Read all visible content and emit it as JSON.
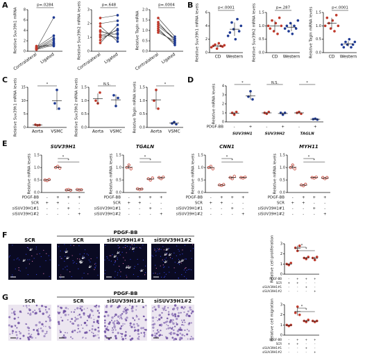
{
  "panel_labels": [
    "A",
    "B",
    "C",
    "D",
    "E",
    "F",
    "G"
  ],
  "images": [
    {
      "group_label": "PDGF-BB",
      "labels": [
        "SCR",
        "SCR",
        "siSUV39H1#1",
        "siSUV39H1#2"
      ]
    },
    {
      "group_label": "PDGF-BB",
      "labels": [
        "SCR",
        "SCR",
        "siSUV39H1#1",
        "siSUV39H1#2"
      ]
    }
  ],
  "chart_data": [
    {
      "type": "paired",
      "ylabel": "Relative Suv39h1 mRNA",
      "categories": [
        "Contralateral",
        "Ligated"
      ],
      "colors": [
        "#c0392b",
        "#1f3a93"
      ],
      "values": [
        [
          0.3,
          0.5,
          0.4,
          0.6,
          0.8,
          0.5,
          0.7,
          1.0,
          0.4
        ],
        [
          1.2,
          1.8,
          1.5,
          2.5,
          3.0,
          6.5,
          1.4,
          1.0,
          2.2
        ]
      ],
      "ylim": [
        0,
        8
      ],
      "yticks": [
        0,
        2,
        4,
        6,
        8
      ],
      "p_value": "p=.0284"
    },
    {
      "type": "paired",
      "ylabel": "Relative Suv39h2 mRNA levels",
      "categories": [
        "Contralateral",
        "Ligated"
      ],
      "colors": [
        "#c0392b",
        "#1f3a93"
      ],
      "values": [
        [
          1.0,
          1.5,
          2.0,
          0.8,
          1.2,
          2.4,
          1.8,
          0.6,
          1.4,
          1.1
        ],
        [
          1.3,
          0.9,
          2.2,
          1.6,
          1.0,
          2.6,
          0.7,
          1.9,
          1.2,
          1.5
        ]
      ],
      "ylim": [
        0,
        3
      ],
      "yticks": [
        0,
        1,
        2,
        3
      ],
      "p_value": "p=.648"
    },
    {
      "type": "paired",
      "ylabel": "Relative Tagln mRNA",
      "categories": [
        "Contralateral",
        "Ligated"
      ],
      "colors": [
        "#c0392b",
        "#1f3a93"
      ],
      "values": [
        [
          1.0,
          1.2,
          1.4,
          1.6,
          1.1,
          0.9,
          1.3,
          1.0
        ],
        [
          0.4,
          0.6,
          0.5,
          0.7,
          0.3,
          0.5,
          0.6,
          0.4
        ]
      ],
      "ylim": [
        0,
        2
      ],
      "yticks": [
        {
          "value": 0,
          "label": "0.0"
        },
        {
          "value": 0.5,
          "label": "0.5"
        },
        {
          "value": 1,
          "label": "1.0"
        },
        {
          "value": 1.5,
          "label": "1.5"
        },
        {
          "value": 2,
          "label": "2.0"
        }
      ],
      "p_value": "p=.0004"
    },
    {
      "type": "dot",
      "ylabel": "Relative Suv39h1 mRNA levels",
      "categories": [
        "CD",
        "Western"
      ],
      "colors": [
        "#c0392b",
        "#1f3a93"
      ],
      "values": [
        [
          0.8,
          1.0,
          1.2,
          0.6,
          1.4,
          1.0,
          0.9,
          1.1
        ],
        [
          2.5,
          3.0,
          4.5,
          3.5,
          2.0,
          5.0,
          3.2,
          4.0
        ]
      ],
      "means": [
        1.0,
        3.5
      ],
      "errors": [
        0.25,
        1.0
      ],
      "ylim": [
        0,
        6
      ],
      "yticks": [
        0,
        2,
        4,
        6
      ],
      "p_value": "p<.0001"
    },
    {
      "type": "dot",
      "ylabel": "Relative Suv39h2 mRNA levels",
      "categories": [
        "CD",
        "Western"
      ],
      "colors": [
        "#c0392b",
        "#1f3a93"
      ],
      "values": [
        [
          1.0,
          0.9,
          1.2,
          0.8,
          1.1,
          0.7,
          1.3,
          1.0
        ],
        [
          0.9,
          1.0,
          0.8,
          1.1,
          0.7,
          1.0,
          0.9,
          1.2
        ]
      ],
      "means": [
        1.0,
        0.95
      ],
      "errors": [
        0.2,
        0.15
      ],
      "ylim": [
        0,
        1.5
      ],
      "yticks": [
        {
          "value": 0,
          "label": "0.0"
        },
        0.5,
        {
          "value": 1,
          "label": "1.0"
        },
        1.5
      ],
      "p_value": "p=.287"
    },
    {
      "type": "dot",
      "ylabel": "Relative Tagln mRNA levels",
      "categories": [
        "CD",
        "Western"
      ],
      "colors": [
        "#c0392b",
        "#1f3a93"
      ],
      "values": [
        [
          1.0,
          1.3,
          1.1,
          0.9,
          1.2,
          0.8,
          1.4,
          1.0
        ],
        [
          0.3,
          0.2,
          0.4,
          0.3,
          0.5,
          0.2,
          0.3,
          0.4
        ]
      ],
      "means": [
        1.1,
        0.33
      ],
      "errors": [
        0.2,
        0.1
      ],
      "ylim": [
        0,
        1.5
      ],
      "yticks": [
        {
          "value": 0,
          "label": "0.0"
        },
        0.5,
        {
          "value": 1,
          "label": "1.0"
        },
        1.5
      ],
      "p_value": "p<.0001"
    },
    {
      "type": "dot",
      "ylabel": "Relative Suv39h1 mRNA levels",
      "categories": [
        "Aorta",
        "VSMC"
      ],
      "colors": [
        "#c0392b",
        "#1f3a93"
      ],
      "values": [
        [
          1.0,
          0.8,
          0.9
        ],
        [
          9.0,
          14.0,
          7.0
        ]
      ],
      "means": [
        0.9,
        10.0
      ],
      "errors": [
        0.1,
        3.5
      ],
      "ylim": [
        0,
        15
      ],
      "yticks": [
        0,
        5,
        10,
        15
      ],
      "significance": [
        "*"
      ]
    },
    {
      "type": "dot",
      "ylabel": "Relative Suv39h2 mRNA levels",
      "categories": [
        "Aorta",
        "VSMC"
      ],
      "colors": [
        "#c0392b",
        "#1f3a93"
      ],
      "values": [
        [
          1.0,
          0.9,
          1.3
        ],
        [
          1.2,
          0.8,
          1.1
        ]
      ],
      "means": [
        1.07,
        1.03
      ],
      "errors": [
        0.2,
        0.2
      ],
      "ylim": [
        0,
        1.5
      ],
      "yticks": [
        {
          "value": 0,
          "label": "0.0"
        },
        0.5,
        {
          "value": 1,
          "label": "1.0"
        },
        1.5
      ],
      "significance": [
        "N.S."
      ]
    },
    {
      "type": "dot",
      "ylabel": "Relative Tagln mRNA levels",
      "categories": [
        "Aorta",
        "VSMC"
      ],
      "colors": [
        "#c0392b",
        "#1f3a93"
      ],
      "values": [
        [
          1.0,
          1.4,
          0.7
        ],
        [
          0.15,
          0.2,
          0.12
        ]
      ],
      "means": [
        1.03,
        0.16
      ],
      "errors": [
        0.35,
        0.04
      ],
      "ylim": [
        0,
        1.5
      ],
      "yticks": [
        {
          "value": 0,
          "label": "0.0"
        },
        0.5,
        {
          "value": 1,
          "label": "1.0"
        },
        1.5
      ],
      "significance": [
        "*"
      ]
    },
    {
      "type": "dot",
      "ylabel": "Relative mRNA levels",
      "colors": [
        "#c0392b",
        "#1f3a93",
        "#c0392b",
        "#1f3a93",
        "#c0392b",
        "#1f3a93"
      ],
      "values": [
        [
          1.0,
          0.8,
          1.1
        ],
        [
          2.8,
          3.4,
          2.5
        ],
        [
          1.0,
          0.9,
          1.1
        ],
        [
          1.0,
          0.8,
          1.0
        ],
        [
          1.0,
          1.1,
          0.9
        ],
        [
          0.3,
          0.35,
          0.25
        ]
      ],
      "means": [
        0.97,
        2.9,
        1.0,
        0.93,
        1.0,
        0.3
      ],
      "errors": [
        0.15,
        0.45,
        0.1,
        0.12,
        0.1,
        0.05
      ],
      "ylim": [
        0,
        4
      ],
      "yticks": [
        0,
        1,
        2,
        3,
        4
      ],
      "treatments": [
        {
          "name": "PDGF-BB",
          "signs": [
            "-",
            "+",
            "-",
            "+",
            "-",
            "+"
          ]
        }
      ],
      "groups": [
        "SUV39H1",
        "SUV39H2",
        "TAGLN"
      ],
      "significance": [
        "*",
        "N.S.",
        "*"
      ]
    },
    {
      "type": "dot",
      "title": "SUV39H1",
      "ylabel": "Relative mRNA levels",
      "marker": "open",
      "colors": [
        "#c0392b",
        "#c0392b",
        "#c0392b",
        "#c0392b"
      ],
      "values": [
        [
          0.5,
          0.48,
          0.52
        ],
        [
          1.0,
          1.05,
          0.98
        ],
        [
          0.1,
          0.12,
          0.09
        ],
        [
          0.12,
          0.1,
          0.11
        ]
      ],
      "means": [
        0.5,
        1.01,
        0.1,
        0.11
      ],
      "errors": [
        0.02,
        0.04,
        0.02,
        0.01
      ],
      "ylim": [
        0,
        1.5
      ],
      "yticks": [
        {
          "value": 0,
          "label": "0.0"
        },
        0.5,
        {
          "value": 1,
          "label": "1.0"
        },
        1.5
      ],
      "treatments": [
        {
          "name": "PDGF-BB",
          "signs": [
            "-",
            "+",
            "+",
            "+"
          ]
        },
        {
          "name": "SCR",
          "signs": [
            "+",
            "+",
            "-",
            "-"
          ]
        },
        {
          "name": "siSUV39H1#1",
          "signs": [
            "-",
            "-",
            "+",
            "-"
          ]
        },
        {
          "name": "siSUV39H1#2",
          "signs": [
            "-",
            "-",
            "-",
            "+"
          ]
        }
      ],
      "significance": [
        "*",
        "*"
      ]
    },
    {
      "type": "dot",
      "title": "TGALN",
      "ylabel": "Relative mRNA levels",
      "marker": "open",
      "colors": [
        "#c0392b",
        "#c0392b",
        "#c0392b",
        "#c0392b"
      ],
      "values": [
        [
          1.0,
          1.1,
          0.95
        ],
        [
          0.15,
          0.12,
          0.14
        ],
        [
          0.55,
          0.5,
          0.58
        ],
        [
          0.6,
          0.55,
          0.62
        ]
      ],
      "means": [
        1.02,
        0.14,
        0.54,
        0.59
      ],
      "errors": [
        0.08,
        0.02,
        0.04,
        0.04
      ],
      "ylim": [
        0,
        1.5
      ],
      "yticks": [
        {
          "value": 0,
          "label": "0.0"
        },
        0.5,
        {
          "value": 1,
          "label": "1.0"
        },
        1.5
      ],
      "treatments": [
        {
          "name": "PDGF-BB",
          "signs": [
            "-",
            "+",
            "+",
            "+"
          ]
        },
        {
          "name": "SCR",
          "signs": [
            "+",
            "+",
            "-",
            "-"
          ]
        },
        {
          "name": "siSUV39H1#1",
          "signs": [
            "-",
            "-",
            "+",
            "-"
          ]
        },
        {
          "name": "siSUV39H1#2",
          "signs": [
            "-",
            "-",
            "-",
            "+"
          ]
        }
      ],
      "significance": [
        "*",
        "*"
      ]
    },
    {
      "type": "dot",
      "title": "CNN1",
      "ylabel": "Relative mRNA levels",
      "marker": "open",
      "colors": [
        "#c0392b",
        "#c0392b",
        "#c0392b",
        "#c0392b"
      ],
      "values": [
        [
          1.0,
          1.05,
          0.95
        ],
        [
          0.3,
          0.28,
          0.32
        ],
        [
          0.6,
          0.55,
          0.65
        ],
        [
          0.6,
          0.58,
          0.62
        ]
      ],
      "means": [
        1.0,
        0.3,
        0.6,
        0.6
      ],
      "errors": [
        0.05,
        0.02,
        0.05,
        0.02
      ],
      "ylim": [
        0,
        1.5
      ],
      "yticks": [
        {
          "value": 0,
          "label": "0.0"
        },
        0.5,
        {
          "value": 1,
          "label": "1.0"
        },
        1.5
      ],
      "treatments": [
        {
          "name": "PDGF-BB",
          "signs": [
            "-",
            "+",
            "+",
            "+"
          ]
        },
        {
          "name": "SCR",
          "signs": [
            "+",
            "+",
            "-",
            "-"
          ]
        },
        {
          "name": "siSUV39H1#1",
          "signs": [
            "-",
            "-",
            "+",
            "-"
          ]
        },
        {
          "name": "siSUV39H1#2",
          "signs": [
            "-",
            "-",
            "-",
            "+"
          ]
        }
      ],
      "significance": [
        "*",
        "*"
      ]
    },
    {
      "type": "dot",
      "title": "MYH11",
      "ylabel": "Relative mRNA levels",
      "marker": "open",
      "colors": [
        "#c0392b",
        "#c0392b",
        "#c0392b",
        "#c0392b"
      ],
      "values": [
        [
          1.0,
          1.1,
          0.95
        ],
        [
          0.3,
          0.27,
          0.33
        ],
        [
          0.6,
          0.58,
          0.62
        ],
        [
          0.6,
          0.55,
          0.6
        ]
      ],
      "means": [
        1.02,
        0.3,
        0.6,
        0.58
      ],
      "errors": [
        0.08,
        0.03,
        0.02,
        0.03
      ],
      "ylim": [
        0,
        1.5
      ],
      "yticks": [
        {
          "value": 0,
          "label": "0.0"
        },
        0.5,
        {
          "value": 1,
          "label": "1.0"
        },
        1.5
      ],
      "treatments": [
        {
          "name": "PDGF-BB",
          "signs": [
            "-",
            "+",
            "+",
            "+"
          ]
        },
        {
          "name": "SCR",
          "signs": [
            "+",
            "+",
            "-",
            "-"
          ]
        },
        {
          "name": "siSUV39H1#1",
          "signs": [
            "-",
            "-",
            "+",
            "-"
          ]
        },
        {
          "name": "siSUV39H1#2",
          "signs": [
            "-",
            "-",
            "-",
            "+"
          ]
        }
      ],
      "significance": [
        "*",
        "*"
      ]
    },
    {
      "type": "dot",
      "ylabel": "Relative cell proliferation",
      "colors": [
        "#c0392b",
        "#c0392b",
        "#c0392b",
        "#c0392b"
      ],
      "values": [
        [
          1.0,
          0.9,
          1.1
        ],
        [
          2.6,
          2.3,
          2.8
        ],
        [
          1.6,
          1.5,
          1.7
        ],
        [
          1.6,
          1.4,
          1.7
        ]
      ],
      "means": [
        1.0,
        2.57,
        1.6,
        1.57
      ],
      "errors": [
        0.1,
        0.25,
        0.1,
        0.15
      ],
      "ylim": [
        0,
        3
      ],
      "yticks": [
        0,
        1,
        2,
        3
      ],
      "treatments": [
        {
          "name": "PDGF-BB",
          "signs": [
            "-",
            "+",
            "+",
            "+"
          ]
        },
        {
          "name": "SCR",
          "signs": [
            "+",
            "+",
            "-",
            "-"
          ]
        },
        {
          "name": "siSUV39H1#1",
          "signs": [
            "-",
            "-",
            "+",
            "-"
          ]
        },
        {
          "name": "siSUV39H1#2",
          "signs": [
            "-",
            "-",
            "-",
            "+"
          ]
        }
      ],
      "significance": [
        "*",
        "*"
      ]
    },
    {
      "type": "dot",
      "ylabel": "Relative cell migration",
      "colors": [
        "#c0392b",
        "#c0392b",
        "#c0392b",
        "#c0392b"
      ],
      "values": [
        [
          1.0,
          0.9,
          1.0
        ],
        [
          2.2,
          2.8,
          2.0
        ],
        [
          1.4,
          1.3,
          1.5
        ],
        [
          1.4,
          1.3,
          1.4
        ]
      ],
      "means": [
        0.97,
        2.33,
        1.4,
        1.37
      ],
      "errors": [
        0.06,
        0.4,
        0.1,
        0.06
      ],
      "ylim": [
        0,
        3
      ],
      "yticks": [
        0,
        1,
        2,
        3
      ],
      "treatments": [
        {
          "name": "PDGF-BB",
          "signs": [
            "-",
            "+",
            "+",
            "+"
          ]
        },
        {
          "name": "SCR",
          "signs": [
            "+",
            "+",
            "-",
            "-"
          ]
        },
        {
          "name": "siSUV39H1#1",
          "signs": [
            "-",
            "-",
            "+",
            "-"
          ]
        },
        {
          "name": "siSUV39H1#2",
          "signs": [
            "-",
            "-",
            "-",
            "+"
          ]
        }
      ],
      "significance": [
        "*",
        "*"
      ]
    }
  ]
}
